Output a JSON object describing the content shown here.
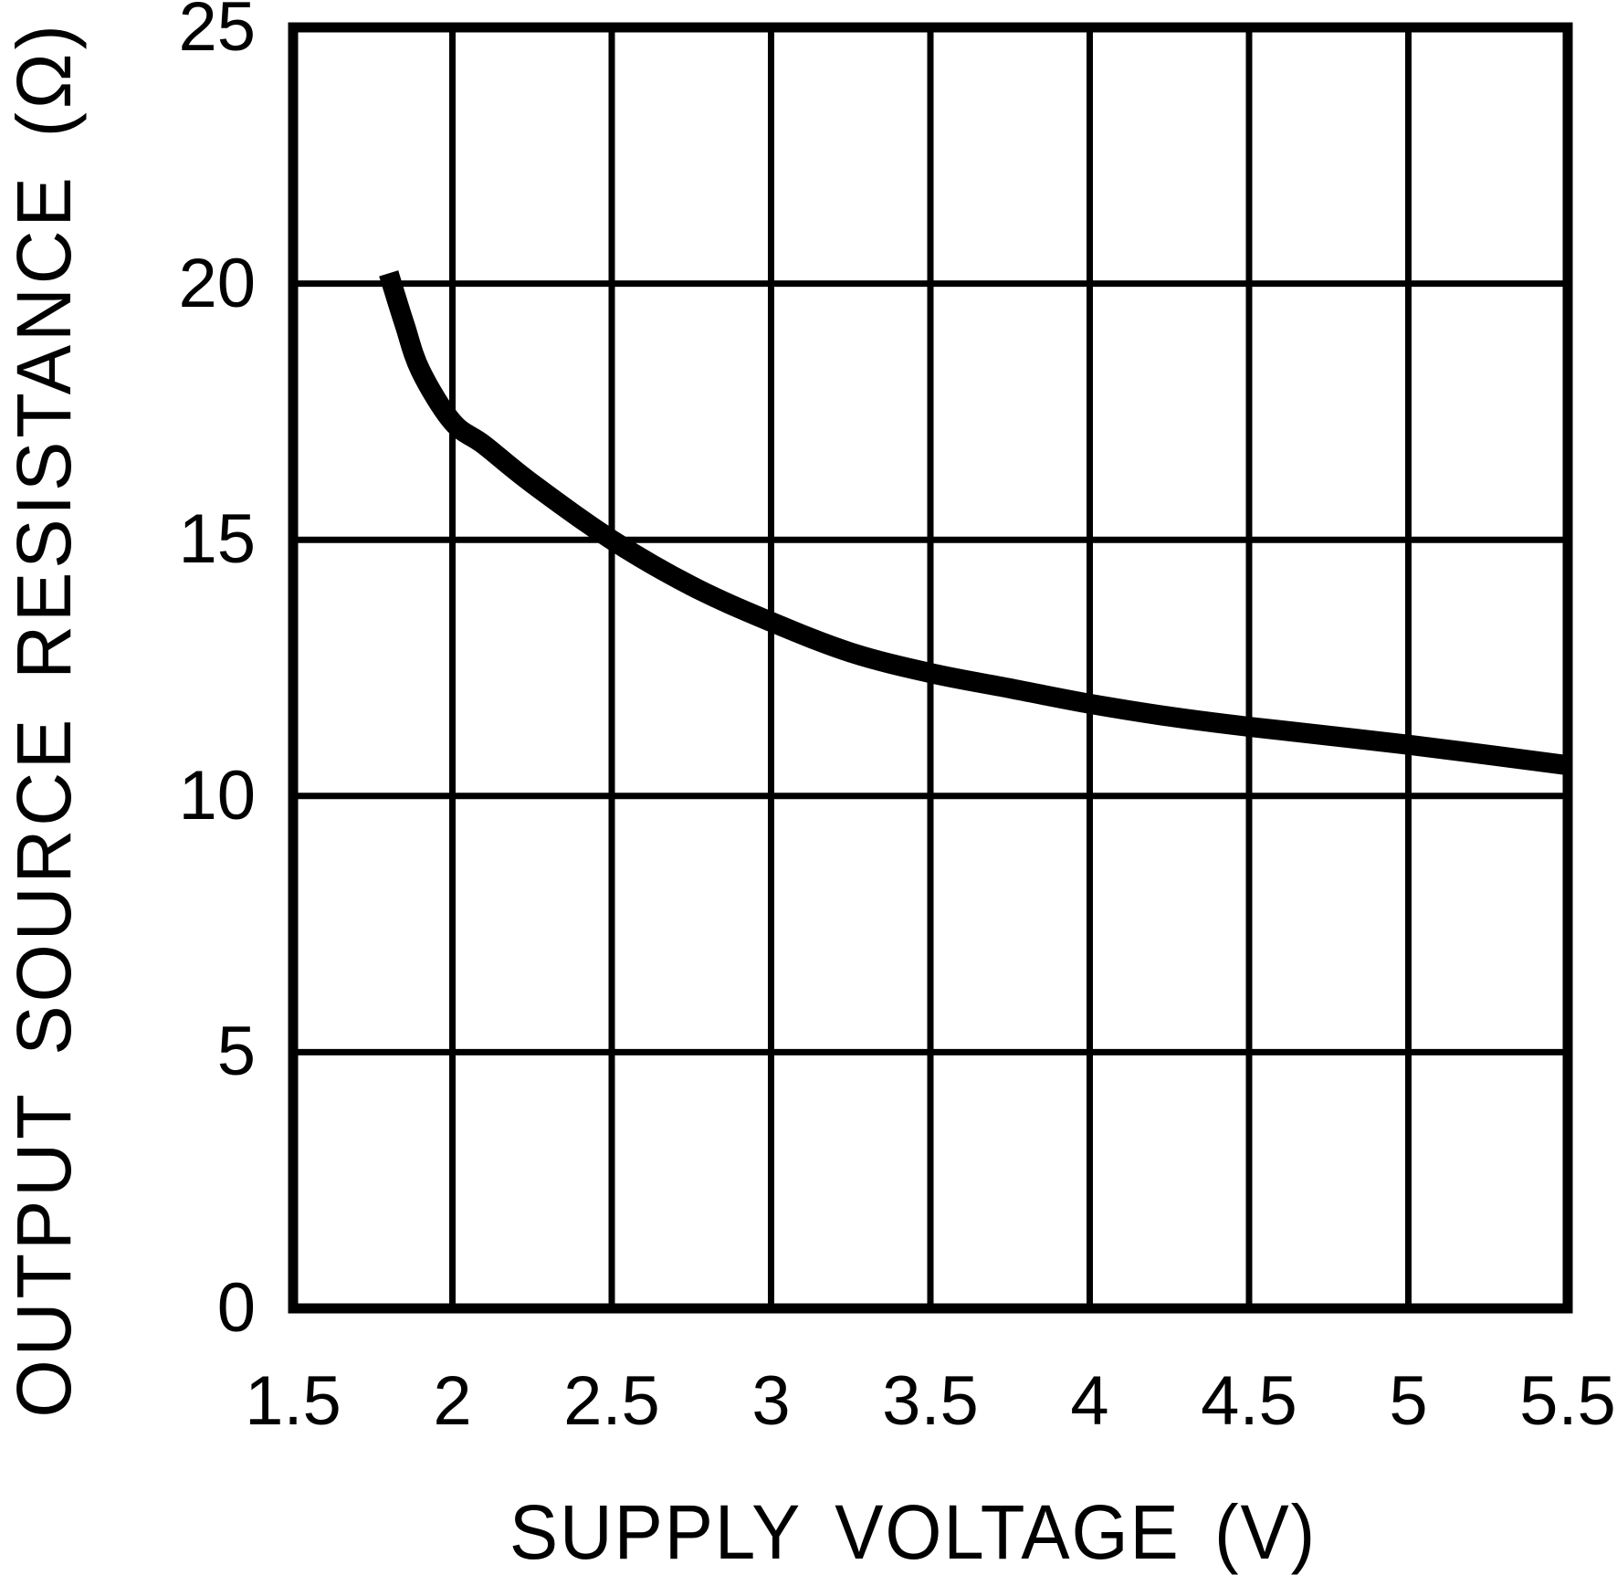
{
  "page": {
    "background_color": "#ffffff",
    "ink_color": "#000000"
  },
  "chart_data": {
    "type": "line",
    "title": "",
    "xlabel": "SUPPLY VOLTAGE (V)",
    "ylabel": "OUTPUT SOURCE RESISTANCE (Ω)",
    "xlim": [
      1.5,
      5.5
    ],
    "ylim": [
      0,
      25
    ],
    "grid": "on",
    "legend": "none",
    "x_ticks": [
      {
        "value": 1.5,
        "label": "1.5"
      },
      {
        "value": 2,
        "label": "2"
      },
      {
        "value": 2.5,
        "label": "2.5"
      },
      {
        "value": 3,
        "label": "3"
      },
      {
        "value": 3.5,
        "label": "3.5"
      },
      {
        "value": 4,
        "label": "4"
      },
      {
        "value": 4.5,
        "label": "4.5"
      },
      {
        "value": 5,
        "label": "5"
      },
      {
        "value": 5.5,
        "label": "5.5"
      }
    ],
    "y_ticks": [
      {
        "value": 0,
        "label": "0"
      },
      {
        "value": 5,
        "label": "5"
      },
      {
        "value": 10,
        "label": "10"
      },
      {
        "value": 15,
        "label": "15"
      },
      {
        "value": 20,
        "label": "20"
      },
      {
        "value": 25,
        "label": "25"
      }
    ],
    "series": [
      {
        "name": "output source resistance",
        "line_color": "#000000",
        "line_width": 22,
        "points": [
          [
            1.8,
            20.2
          ],
          [
            1.85,
            19.2
          ],
          [
            1.9,
            18.3
          ],
          [
            2.0,
            17.3
          ],
          [
            2.1,
            16.85
          ],
          [
            2.25,
            16.1
          ],
          [
            2.5,
            15.0
          ],
          [
            2.75,
            14.1
          ],
          [
            3.0,
            13.4
          ],
          [
            3.25,
            12.8
          ],
          [
            3.5,
            12.4
          ],
          [
            3.75,
            12.1
          ],
          [
            4.0,
            11.8
          ],
          [
            4.25,
            11.55
          ],
          [
            4.5,
            11.35
          ],
          [
            5.0,
            11.0
          ],
          [
            5.5,
            10.6
          ]
        ]
      }
    ],
    "style": {
      "grid_line_width": 7,
      "border_line_width": 11,
      "grid_color": "#000000"
    }
  }
}
